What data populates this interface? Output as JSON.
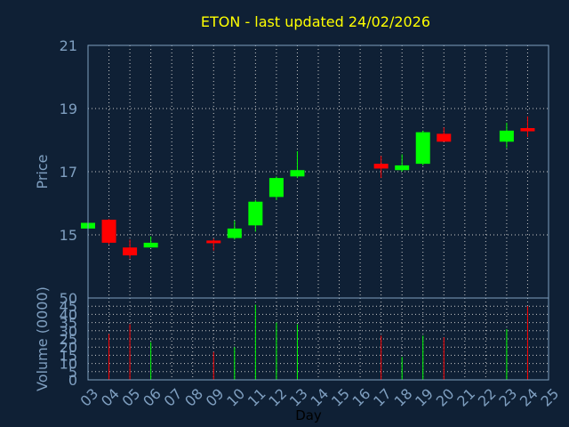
{
  "chart_data": [
    {
      "type": "candlestick",
      "title": "ETON - last updated 24/02/2026",
      "ylabel": "Price",
      "ylim": [
        13,
        21
      ],
      "yticks": [
        "15",
        "17",
        "19",
        "21"
      ],
      "grid": true,
      "up_color": "#00ff00",
      "down_color": "#ff0000",
      "candles": [
        {
          "day": 3,
          "open": 15.2,
          "high": 15.4,
          "low": 15.2,
          "close": 15.38
        },
        {
          "day": 4,
          "open": 15.48,
          "high": 15.5,
          "low": 14.7,
          "close": 14.75
        },
        {
          "day": 5,
          "open": 14.6,
          "high": 14.85,
          "low": 14.25,
          "close": 14.35
        },
        {
          "day": 6,
          "open": 14.6,
          "high": 14.95,
          "low": 14.6,
          "close": 14.75
        },
        {
          "day": 9,
          "open": 14.82,
          "high": 14.88,
          "low": 14.5,
          "close": 14.8
        },
        {
          "day": 10,
          "open": 14.9,
          "high": 15.45,
          "low": 14.85,
          "close": 15.2
        },
        {
          "day": 11,
          "open": 15.3,
          "high": 16.1,
          "low": 15.1,
          "close": 16.05
        },
        {
          "day": 12,
          "open": 16.2,
          "high": 16.85,
          "low": 16.1,
          "close": 16.8
        },
        {
          "day": 13,
          "open": 16.85,
          "high": 17.65,
          "low": 16.8,
          "close": 17.05
        },
        {
          "day": 17,
          "open": 17.25,
          "high": 17.5,
          "low": 16.8,
          "close": 17.1
        },
        {
          "day": 18,
          "open": 17.05,
          "high": 17.55,
          "low": 17.0,
          "close": 17.2
        },
        {
          "day": 19,
          "open": 17.25,
          "high": 18.3,
          "low": 17.2,
          "close": 18.25
        },
        {
          "day": 20,
          "open": 18.2,
          "high": 18.4,
          "low": 17.95,
          "close": 17.95
        },
        {
          "day": 23,
          "open": 17.95,
          "high": 18.55,
          "low": 17.75,
          "close": 18.3
        },
        {
          "day": 24,
          "open": 18.38,
          "high": 18.75,
          "low": 18.1,
          "close": 18.28
        }
      ]
    },
    {
      "type": "bar",
      "ylabel": "Volume (0000)",
      "xlabel": "Day",
      "ylim": [
        0,
        50
      ],
      "yticks": [
        "0",
        "5",
        "10",
        "15",
        "20",
        "25",
        "30",
        "35",
        "40",
        "45",
        "50"
      ],
      "xticks": [
        "03",
        "04",
        "05",
        "06",
        "07",
        "08",
        "09",
        "10",
        "11",
        "12",
        "13",
        "14",
        "15",
        "16",
        "17",
        "18",
        "19",
        "20",
        "21",
        "22",
        "23",
        "24",
        "25"
      ],
      "grid": true,
      "bars": [
        {
          "day": 3,
          "value": 0,
          "up": true
        },
        {
          "day": 4,
          "value": 28,
          "up": false
        },
        {
          "day": 5,
          "value": 34,
          "up": false
        },
        {
          "day": 6,
          "value": 23,
          "up": true
        },
        {
          "day": 9,
          "value": 17,
          "up": false
        },
        {
          "day": 10,
          "value": 20,
          "up": true
        },
        {
          "day": 11,
          "value": 46,
          "up": true
        },
        {
          "day": 12,
          "value": 35,
          "up": true
        },
        {
          "day": 13,
          "value": 34,
          "up": true
        },
        {
          "day": 17,
          "value": 27,
          "up": false
        },
        {
          "day": 18,
          "value": 14,
          "up": true
        },
        {
          "day": 19,
          "value": 27,
          "up": true
        },
        {
          "day": 20,
          "value": 26,
          "up": false
        },
        {
          "day": 23,
          "value": 31,
          "up": true
        },
        {
          "day": 24,
          "value": 45,
          "up": false
        }
      ]
    }
  ]
}
